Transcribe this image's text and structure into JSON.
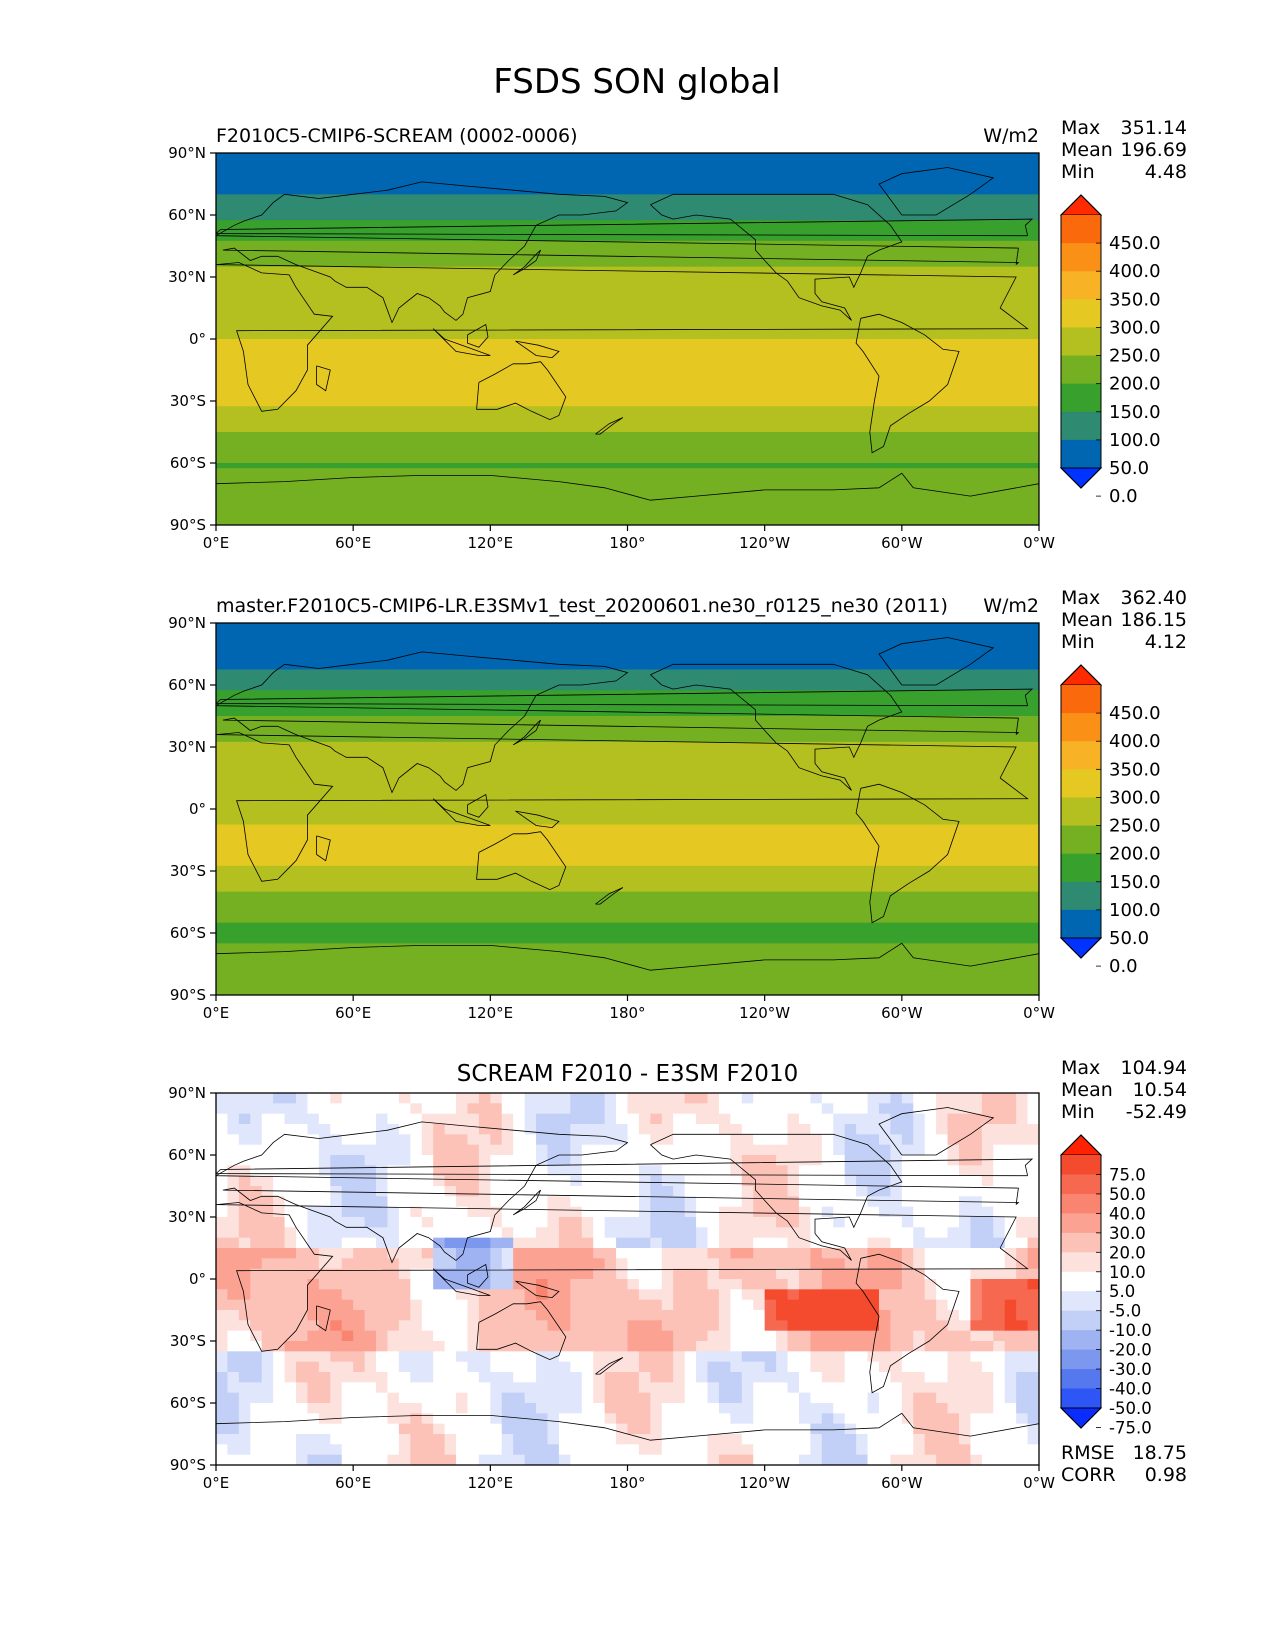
{
  "figure_title": "FSDS SON global",
  "chart_data": [
    {
      "type": "heatmap",
      "title_left": "F2010C5-CMIP6-SCREAM (0002-0006)",
      "title_right": "W/m2",
      "title_center": "",
      "stats": [
        {
          "label": "Max",
          "value": "351.14"
        },
        {
          "label": "Mean",
          "value": "196.69"
        },
        {
          "label": "Min",
          "value": "4.48"
        }
      ],
      "colorbar": {
        "labels": [
          "450.0",
          "400.0",
          "350.0",
          "300.0",
          "250.0",
          "200.0",
          "150.0",
          "100.0",
          "50.0",
          "0.0"
        ],
        "colors": [
          "#0033ff",
          "#0066b2",
          "#2e8b72",
          "#38a02c",
          "#74b021",
          "#b4c01f",
          "#e6c823",
          "#f7b225",
          "#fa9016",
          "#fa6a0c",
          "#ff2a00"
        ],
        "extend": "both"
      },
      "xticks": [
        "0°E",
        "60°E",
        "120°E",
        "180°",
        "120°W",
        "60°W",
        "0°W"
      ],
      "yticks": [
        "90°N",
        "60°N",
        "30°N",
        "0°",
        "30°S",
        "60°S",
        "90°S"
      ],
      "xlim": [
        0,
        360
      ],
      "ylim": [
        -90,
        90
      ],
      "latitudinal_profile": [
        {
          "lat": 90,
          "value": 20
        },
        {
          "lat": 75,
          "value": 30
        },
        {
          "lat": 62,
          "value": 75
        },
        {
          "lat": 55,
          "value": 115
        },
        {
          "lat": 45,
          "value": 160
        },
        {
          "lat": 35,
          "value": 200
        },
        {
          "lat": 25,
          "value": 240
        },
        {
          "lat": 15,
          "value": 250
        },
        {
          "lat": 5,
          "value": 235
        },
        {
          "lat": -5,
          "value": 265
        },
        {
          "lat": -15,
          "value": 290
        },
        {
          "lat": -25,
          "value": 285
        },
        {
          "lat": -35,
          "value": 240
        },
        {
          "lat": -45,
          "value": 200
        },
        {
          "lat": -55,
          "value": 165
        },
        {
          "lat": -62,
          "value": 145
        },
        {
          "lat": -70,
          "value": 185
        },
        {
          "lat": -80,
          "value": 185
        },
        {
          "lat": -90,
          "value": 175
        }
      ]
    },
    {
      "type": "heatmap",
      "title_left": "master.F2010C5-CMIP6-LR.E3SMv1_test_20200601.ne30_r0125_ne30 (2011)",
      "title_right": "W/m2",
      "title_center": "",
      "stats": [
        {
          "label": "Max",
          "value": "362.40"
        },
        {
          "label": "Mean",
          "value": "186.15"
        },
        {
          "label": "Min",
          "value": "4.12"
        }
      ],
      "colorbar": {
        "labels": [
          "450.0",
          "400.0",
          "350.0",
          "300.0",
          "250.0",
          "200.0",
          "150.0",
          "100.0",
          "50.0",
          "0.0"
        ],
        "colors": [
          "#0033ff",
          "#0066b2",
          "#2e8b72",
          "#38a02c",
          "#74b021",
          "#b4c01f",
          "#e6c823",
          "#f7b225",
          "#fa9016",
          "#fa6a0c",
          "#ff2a00"
        ],
        "extend": "both"
      },
      "xticks": [
        "0°E",
        "60°E",
        "120°E",
        "180°",
        "120°W",
        "60°W",
        "0°W"
      ],
      "yticks": [
        "90°N",
        "60°N",
        "30°N",
        "0°",
        "30°S",
        "60°S",
        "90°S"
      ],
      "xlim": [
        0,
        360
      ],
      "ylim": [
        -90,
        90
      ],
      "latitudinal_profile": [
        {
          "lat": 90,
          "value": 20
        },
        {
          "lat": 75,
          "value": 30
        },
        {
          "lat": 62,
          "value": 70
        },
        {
          "lat": 55,
          "value": 110
        },
        {
          "lat": 45,
          "value": 150
        },
        {
          "lat": 35,
          "value": 190
        },
        {
          "lat": 25,
          "value": 230
        },
        {
          "lat": 15,
          "value": 230
        },
        {
          "lat": 5,
          "value": 220
        },
        {
          "lat": -5,
          "value": 245
        },
        {
          "lat": -15,
          "value": 265
        },
        {
          "lat": -25,
          "value": 262
        },
        {
          "lat": -35,
          "value": 225
        },
        {
          "lat": -45,
          "value": 180
        },
        {
          "lat": -55,
          "value": 150
        },
        {
          "lat": -62,
          "value": 135
        },
        {
          "lat": -70,
          "value": 175
        },
        {
          "lat": -80,
          "value": 170
        },
        {
          "lat": -90,
          "value": 165
        }
      ]
    },
    {
      "type": "heatmap",
      "title_left": "",
      "title_right": "",
      "title_center": "SCREAM F2010 - E3SM F2010",
      "stats": [
        {
          "label": "Max",
          "value": "104.94"
        },
        {
          "label": "Mean",
          "value": "10.54"
        },
        {
          "label": "Min",
          "value": "-52.49"
        }
      ],
      "bottom_stats": [
        {
          "label": "RMSE",
          "value": "18.75"
        },
        {
          "label": "CORR",
          "value": "0.98"
        }
      ],
      "colorbar": {
        "labels": [
          "75.0",
          "50.0",
          "40.0",
          "30.0",
          "20.0",
          "10.0",
          "5.0",
          "-5.0",
          "-10.0",
          "-20.0",
          "-30.0",
          "-40.0",
          "-50.0",
          "-75.0"
        ],
        "colors": [
          "#0a2cff",
          "#2e55f5",
          "#5678ee",
          "#7b98ee",
          "#9fb3f2",
          "#c2cff6",
          "#e0e6fb",
          "#ffffff",
          "#fde1dd",
          "#fcc2b8",
          "#fba293",
          "#f98570",
          "#f6684f",
          "#f44a2e",
          "#ff2200"
        ],
        "extend": "both"
      },
      "xticks": [
        "0°E",
        "60°E",
        "120°E",
        "180°",
        "120°W",
        "60°W",
        "0°W"
      ],
      "yticks": [
        "90°N",
        "60°N",
        "30°N",
        "0°",
        "30°S",
        "60°S",
        "90°S"
      ],
      "xlim": [
        0,
        360
      ],
      "ylim": [
        -90,
        90
      ]
    }
  ]
}
